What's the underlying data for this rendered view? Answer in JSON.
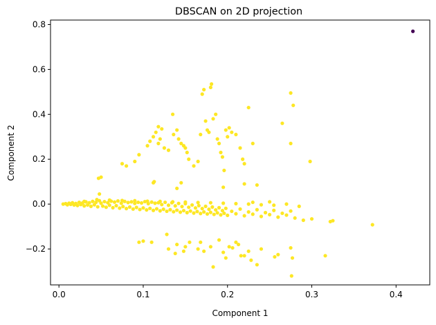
{
  "chart_data": {
    "type": "scatter",
    "title": "DBSCAN on 2D projection",
    "xlabel": "Component 1",
    "ylabel": "Component 2",
    "xlim": [
      -0.01,
      0.44
    ],
    "ylim": [
      -0.36,
      0.82
    ],
    "x_ticks": [
      0.0,
      0.1,
      0.2,
      0.3,
      0.4
    ],
    "x_tick_labels": [
      "0.0",
      "0.1",
      "0.2",
      "0.3",
      "0.4"
    ],
    "y_ticks": [
      -0.2,
      0.0,
      0.2,
      0.4,
      0.6,
      0.8
    ],
    "y_tick_labels": [
      "−0.2",
      "0.0",
      "0.2",
      "0.4",
      "0.6",
      "0.8"
    ],
    "grid": false,
    "colors": {
      "cluster": "#fde725",
      "noise": "#440154"
    },
    "series": [
      {
        "cluster": "noise",
        "color": "#440154",
        "points": [
          [
            0.42,
            0.77
          ]
        ]
      },
      {
        "cluster": "cluster-0",
        "color": "#fde725",
        "points": [
          [
            0.005,
            0.0
          ],
          [
            0.008,
            0.002
          ],
          [
            0.01,
            -0.003
          ],
          [
            0.012,
            0.004
          ],
          [
            0.014,
            -0.001
          ],
          [
            0.016,
            0.006
          ],
          [
            0.018,
            -0.004
          ],
          [
            0.02,
            0.003
          ],
          [
            0.022,
            -0.006
          ],
          [
            0.024,
            0.008
          ],
          [
            0.026,
            -0.002
          ],
          [
            0.028,
            0.005
          ],
          [
            0.03,
            -0.008
          ],
          [
            0.032,
            0.01
          ],
          [
            0.034,
            -0.004
          ],
          [
            0.036,
            0.006
          ],
          [
            0.038,
            -0.01
          ],
          [
            0.04,
            0.012
          ],
          [
            0.042,
            -0.003
          ],
          [
            0.044,
            0.008
          ],
          [
            0.046,
            -0.012
          ],
          [
            0.048,
            0.015
          ],
          [
            0.05,
            0.004
          ],
          [
            0.052,
            -0.009
          ],
          [
            0.054,
            0.011
          ],
          [
            0.056,
            -0.014
          ],
          [
            0.058,
            0.006
          ],
          [
            0.06,
            -0.005
          ],
          [
            0.062,
            0.013
          ],
          [
            0.064,
            -0.016
          ],
          [
            0.066,
            0.009
          ],
          [
            0.068,
            -0.007
          ],
          [
            0.07,
            0.014
          ],
          [
            0.072,
            -0.018
          ],
          [
            0.074,
            0.004
          ],
          [
            0.076,
            -0.011
          ],
          [
            0.078,
            0.012
          ],
          [
            0.08,
            -0.02
          ],
          [
            0.082,
            0.007
          ],
          [
            0.084,
            -0.013
          ],
          [
            0.086,
            0.01
          ],
          [
            0.088,
            -0.022
          ],
          [
            0.09,
            0.003
          ],
          [
            0.092,
            -0.015
          ],
          [
            0.094,
            0.008
          ],
          [
            0.096,
            -0.024
          ],
          [
            0.098,
            0.005
          ],
          [
            0.1,
            -0.017
          ],
          [
            0.102,
            0.011
          ],
          [
            0.104,
            -0.026
          ],
          [
            0.106,
            0.002
          ],
          [
            0.108,
            -0.019
          ],
          [
            0.11,
            0.009
          ],
          [
            0.112,
            -0.028
          ],
          [
            0.114,
            0.004
          ],
          [
            0.116,
            -0.021
          ],
          [
            0.118,
            0.006
          ],
          [
            0.12,
            -0.03
          ],
          [
            0.122,
            -0.002
          ],
          [
            0.124,
            -0.023
          ],
          [
            0.126,
            0.008
          ],
          [
            0.128,
            -0.032
          ],
          [
            0.13,
            -0.005
          ],
          [
            0.132,
            -0.025
          ],
          [
            0.134,
            0.006
          ],
          [
            0.136,
            -0.034
          ],
          [
            0.138,
            -0.008
          ],
          [
            0.14,
            -0.027
          ],
          [
            0.142,
            0.003
          ],
          [
            0.144,
            -0.036
          ],
          [
            0.146,
            -0.011
          ],
          [
            0.148,
            -0.029
          ],
          [
            0.15,
            0.002
          ],
          [
            0.152,
            -0.038
          ],
          [
            0.154,
            -0.014
          ],
          [
            0.156,
            -0.031
          ],
          [
            0.158,
            -0.004
          ],
          [
            0.16,
            -0.04
          ],
          [
            0.162,
            -0.017
          ],
          [
            0.164,
            -0.033
          ],
          [
            0.166,
            -0.007
          ],
          [
            0.168,
            -0.042
          ],
          [
            0.17,
            -0.02
          ],
          [
            0.172,
            -0.035
          ],
          [
            0.174,
            -0.01
          ],
          [
            0.176,
            -0.044
          ],
          [
            0.178,
            -0.023
          ],
          [
            0.18,
            -0.037
          ],
          [
            0.182,
            -0.013
          ],
          [
            0.184,
            -0.046
          ],
          [
            0.186,
            -0.026
          ],
          [
            0.188,
            -0.039
          ],
          [
            0.19,
            -0.016
          ],
          [
            0.192,
            -0.048
          ],
          [
            0.194,
            -0.029
          ],
          [
            0.196,
            -0.041
          ],
          [
            0.198,
            -0.019
          ],
          [
            0.2,
            -0.05
          ],
          [
            0.205,
            -0.032
          ],
          [
            0.21,
            -0.043
          ],
          [
            0.215,
            -0.022
          ],
          [
            0.22,
            -0.052
          ],
          [
            0.225,
            -0.035
          ],
          [
            0.23,
            -0.045
          ],
          [
            0.235,
            -0.025
          ],
          [
            0.24,
            -0.055
          ],
          [
            0.245,
            -0.038
          ],
          [
            0.25,
            -0.047
          ],
          [
            0.255,
            -0.028
          ],
          [
            0.26,
            -0.058
          ],
          [
            0.265,
            -0.041
          ],
          [
            0.27,
            -0.049
          ],
          [
            0.275,
            -0.031
          ],
          [
            0.28,
            -0.062
          ],
          [
            0.29,
            -0.072
          ],
          [
            0.3,
            -0.066
          ],
          [
            0.322,
            -0.078
          ],
          [
            0.325,
            -0.074
          ],
          [
            0.372,
            -0.092
          ],
          [
            0.03,
            0.012
          ],
          [
            0.045,
            0.02
          ],
          [
            0.06,
            0.018
          ],
          [
            0.075,
            0.016
          ],
          [
            0.09,
            0.015
          ],
          [
            0.105,
            0.013
          ],
          [
            0.12,
            0.012
          ],
          [
            0.135,
            0.01
          ],
          [
            0.15,
            0.009
          ],
          [
            0.165,
            0.007
          ],
          [
            0.18,
            0.006
          ],
          [
            0.195,
            0.004
          ],
          [
            0.21,
            0.002
          ],
          [
            0.225,
            0.0
          ],
          [
            0.24,
            -0.003
          ],
          [
            0.255,
            -0.005
          ],
          [
            0.27,
            0.0
          ],
          [
            0.285,
            -0.01
          ],
          [
            0.25,
            0.01
          ],
          [
            0.23,
            0.008
          ],
          [
            0.048,
            0.045
          ],
          [
            0.047,
            0.115
          ],
          [
            0.05,
            0.12
          ],
          [
            0.112,
            0.095
          ],
          [
            0.113,
            0.1
          ],
          [
            0.145,
            0.095
          ],
          [
            0.22,
            0.09
          ],
          [
            0.235,
            0.085
          ],
          [
            0.195,
            0.075
          ],
          [
            0.14,
            0.07
          ],
          [
            0.075,
            0.18
          ],
          [
            0.08,
            0.17
          ],
          [
            0.09,
            0.19
          ],
          [
            0.095,
            0.22
          ],
          [
            0.105,
            0.26
          ],
          [
            0.108,
            0.28
          ],
          [
            0.112,
            0.3
          ],
          [
            0.115,
            0.32
          ],
          [
            0.118,
            0.345
          ],
          [
            0.122,
            0.335
          ],
          [
            0.12,
            0.29
          ],
          [
            0.118,
            0.27
          ],
          [
            0.125,
            0.25
          ],
          [
            0.13,
            0.24
          ],
          [
            0.135,
            0.4
          ],
          [
            0.136,
            0.31
          ],
          [
            0.14,
            0.33
          ],
          [
            0.142,
            0.29
          ],
          [
            0.145,
            0.27
          ],
          [
            0.148,
            0.26
          ],
          [
            0.15,
            0.25
          ],
          [
            0.152,
            0.23
          ],
          [
            0.154,
            0.2
          ],
          [
            0.16,
            0.17
          ],
          [
            0.165,
            0.19
          ],
          [
            0.168,
            0.31
          ],
          [
            0.17,
            0.49
          ],
          [
            0.172,
            0.51
          ],
          [
            0.174,
            0.37
          ],
          [
            0.176,
            0.33
          ],
          [
            0.178,
            0.32
          ],
          [
            0.18,
            0.52
          ],
          [
            0.181,
            0.535
          ],
          [
            0.183,
            0.38
          ],
          [
            0.186,
            0.4
          ],
          [
            0.188,
            0.29
          ],
          [
            0.19,
            0.27
          ],
          [
            0.192,
            0.23
          ],
          [
            0.194,
            0.21
          ],
          [
            0.196,
            0.15
          ],
          [
            0.198,
            0.33
          ],
          [
            0.2,
            0.3
          ],
          [
            0.202,
            0.34
          ],
          [
            0.205,
            0.32
          ],
          [
            0.21,
            0.31
          ],
          [
            0.215,
            0.25
          ],
          [
            0.218,
            0.2
          ],
          [
            0.22,
            0.18
          ],
          [
            0.225,
            0.43
          ],
          [
            0.23,
            0.27
          ],
          [
            0.265,
            0.36
          ],
          [
            0.275,
            0.495
          ],
          [
            0.278,
            0.44
          ],
          [
            0.275,
            0.27
          ],
          [
            0.298,
            0.19
          ],
          [
            0.095,
            -0.17
          ],
          [
            0.1,
            -0.165
          ],
          [
            0.11,
            -0.17
          ],
          [
            0.128,
            -0.135
          ],
          [
            0.13,
            -0.2
          ],
          [
            0.138,
            -0.22
          ],
          [
            0.14,
            -0.18
          ],
          [
            0.148,
            -0.21
          ],
          [
            0.15,
            -0.19
          ],
          [
            0.155,
            -0.17
          ],
          [
            0.165,
            -0.2
          ],
          [
            0.168,
            -0.17
          ],
          [
            0.172,
            -0.21
          ],
          [
            0.18,
            -0.19
          ],
          [
            0.183,
            -0.28
          ],
          [
            0.19,
            -0.16
          ],
          [
            0.195,
            -0.215
          ],
          [
            0.198,
            -0.24
          ],
          [
            0.202,
            -0.19
          ],
          [
            0.206,
            -0.195
          ],
          [
            0.21,
            -0.17
          ],
          [
            0.213,
            -0.18
          ],
          [
            0.216,
            -0.23
          ],
          [
            0.22,
            -0.23
          ],
          [
            0.225,
            -0.21
          ],
          [
            0.228,
            -0.25
          ],
          [
            0.235,
            -0.27
          ],
          [
            0.24,
            -0.2
          ],
          [
            0.256,
            -0.235
          ],
          [
            0.26,
            -0.225
          ],
          [
            0.275,
            -0.195
          ],
          [
            0.277,
            -0.24
          ],
          [
            0.276,
            -0.32
          ],
          [
            0.316,
            -0.23
          ]
        ]
      }
    ]
  }
}
